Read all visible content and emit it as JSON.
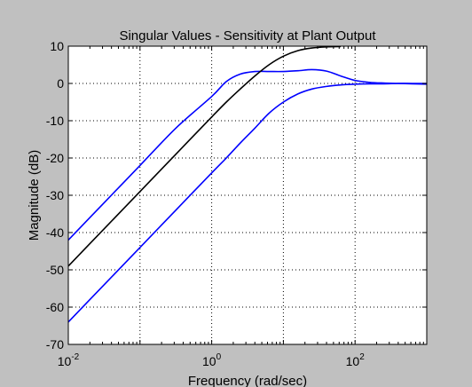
{
  "colors": {
    "figure_bg": "#c0c0c0",
    "axes_bg": "#ffffff",
    "grid": "#000000",
    "blue_series": "#0000ff",
    "black_series": "#000000"
  },
  "chart_data": {
    "type": "line",
    "title": "Singular Values - Sensitivity  at Plant Output",
    "xlabel": "Frequency (rad/sec)",
    "ylabel": "Magnitude (dB)",
    "xscale": "log",
    "xlim": [
      0.01,
      1000
    ],
    "ylim": [
      -70,
      10
    ],
    "grid": true,
    "legend": "none",
    "xticks": [
      {
        "value": 0.01,
        "base": "10",
        "exp": "-2"
      },
      {
        "value": 1,
        "base": "10",
        "exp": "0"
      },
      {
        "value": 100,
        "base": "10",
        "exp": "2"
      }
    ],
    "yticks": [
      10,
      0,
      -10,
      -20,
      -30,
      -40,
      -50,
      -60,
      -70
    ],
    "series": [
      {
        "color": "#0000ff",
        "x": [
          0.01,
          0.0316,
          0.1,
          0.316,
          1,
          1.6,
          2.5,
          4,
          6.3,
          10,
          16,
          25,
          40,
          63,
          100,
          158,
          251,
          398,
          631,
          1000
        ],
        "y": [
          -42,
          -32,
          -22,
          -12,
          -3.5,
          0.5,
          2.5,
          3.2,
          3.2,
          3.2,
          3.4,
          3.7,
          3.3,
          2.0,
          0.8,
          0.3,
          0.1,
          0.0,
          -0.1,
          -0.2
        ]
      },
      {
        "color": "#000000",
        "x": [
          0.01,
          0.0316,
          0.1,
          0.316,
          1,
          1.6,
          2.5,
          4,
          6.3,
          10,
          16,
          25,
          40,
          63
        ],
        "y": [
          -49,
          -39,
          -29,
          -19,
          -9,
          -5,
          -1.5,
          2.0,
          5.0,
          7.3,
          8.8,
          9.5,
          9.8,
          9.9
        ]
      },
      {
        "color": "#0000ff",
        "x": [
          0.01,
          0.0316,
          0.1,
          0.316,
          1,
          1.6,
          2.5,
          4,
          6.3,
          10,
          16,
          25,
          40,
          63,
          100,
          158,
          251,
          398,
          631,
          1000
        ],
        "y": [
          -64,
          -54,
          -44,
          -34,
          -24,
          -20,
          -16,
          -12,
          -8,
          -5,
          -2.8,
          -1.5,
          -0.8,
          -0.4,
          -0.2,
          -0.1,
          -0.1,
          0.0,
          0.0,
          0.0
        ]
      }
    ]
  }
}
